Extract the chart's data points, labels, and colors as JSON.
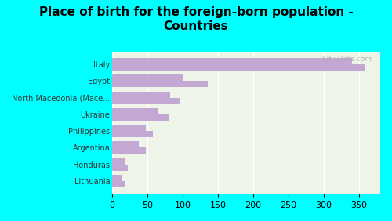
{
  "categories": [
    "Italy",
    "Egypt",
    "North Macedonia (Mace...",
    "Ukraine",
    "Philippines",
    "Argentina",
    "Honduras",
    "Lithuania"
  ],
  "values1": [
    358,
    135,
    95,
    80,
    58,
    48,
    22,
    18
  ],
  "values2": [
    340,
    100,
    82,
    65,
    48,
    38,
    18,
    14
  ],
  "bar_color": "#c4a8d4",
  "background_color": "#00ffff",
  "plot_bg_color": "#eef5e8",
  "title": "Place of birth for the foreign-born population -\nCountries",
  "title_fontsize": 11,
  "watermark": "City-Data.com",
  "xlim": [
    0,
    380
  ]
}
